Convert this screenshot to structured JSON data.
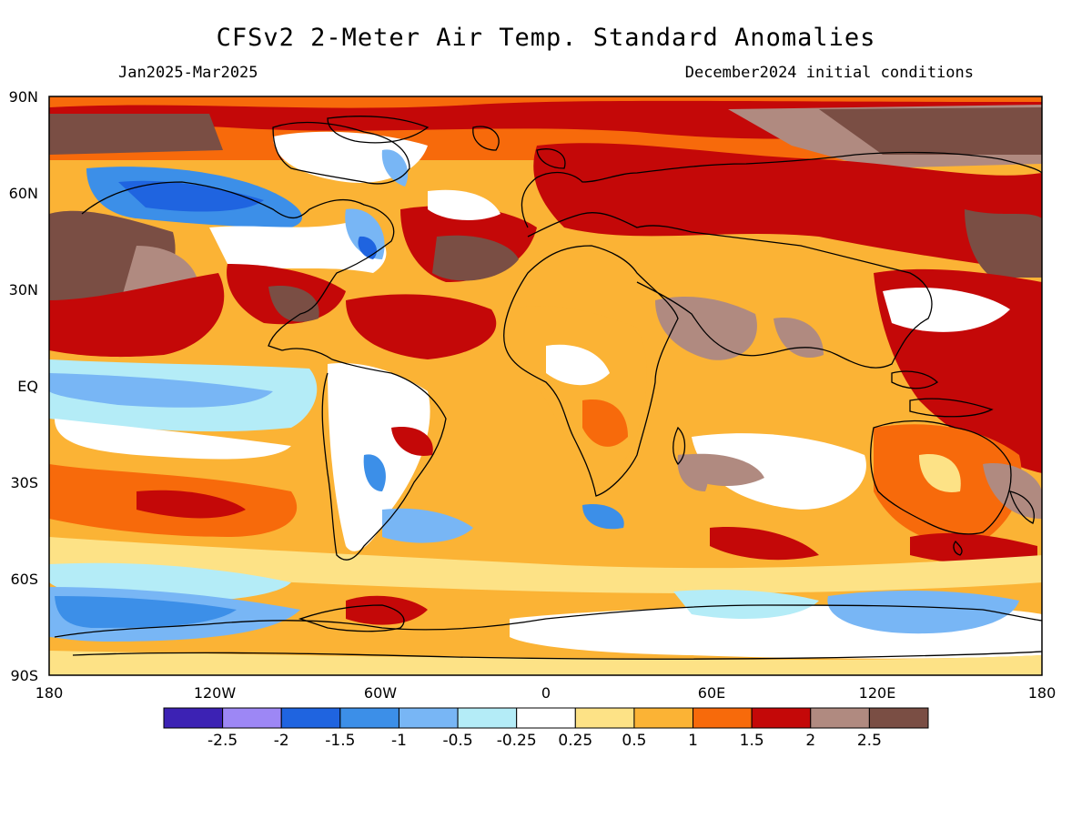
{
  "header": {
    "title": "CFSv2 2-Meter Air Temp. Standard Anomalies",
    "period": "Jan2025-Mar2025",
    "init": "December2024 initial conditions"
  },
  "map": {
    "lat_labels": [
      "90N",
      "60N",
      "30N",
      "EQ",
      "30S",
      "60S",
      "90S"
    ],
    "lon_labels": [
      "180",
      "120W",
      "60W",
      "0",
      "60E",
      "120E",
      "180"
    ]
  },
  "colorbar": {
    "colors": [
      "#3c22b4",
      "#9d87f5",
      "#1f64e0",
      "#3c8fe8",
      "#78b6f5",
      "#b4ecf7",
      "#ffffff",
      "#fde286",
      "#fbb335",
      "#f76a0b",
      "#c40808",
      "#b08a80",
      "#7a4e44"
    ],
    "labels": [
      "-2.5",
      "-2",
      "-1.5",
      "-1",
      "-0.5",
      "-0.25",
      "0.25",
      "0.5",
      "1",
      "1.5",
      "2",
      "2.5"
    ]
  }
}
